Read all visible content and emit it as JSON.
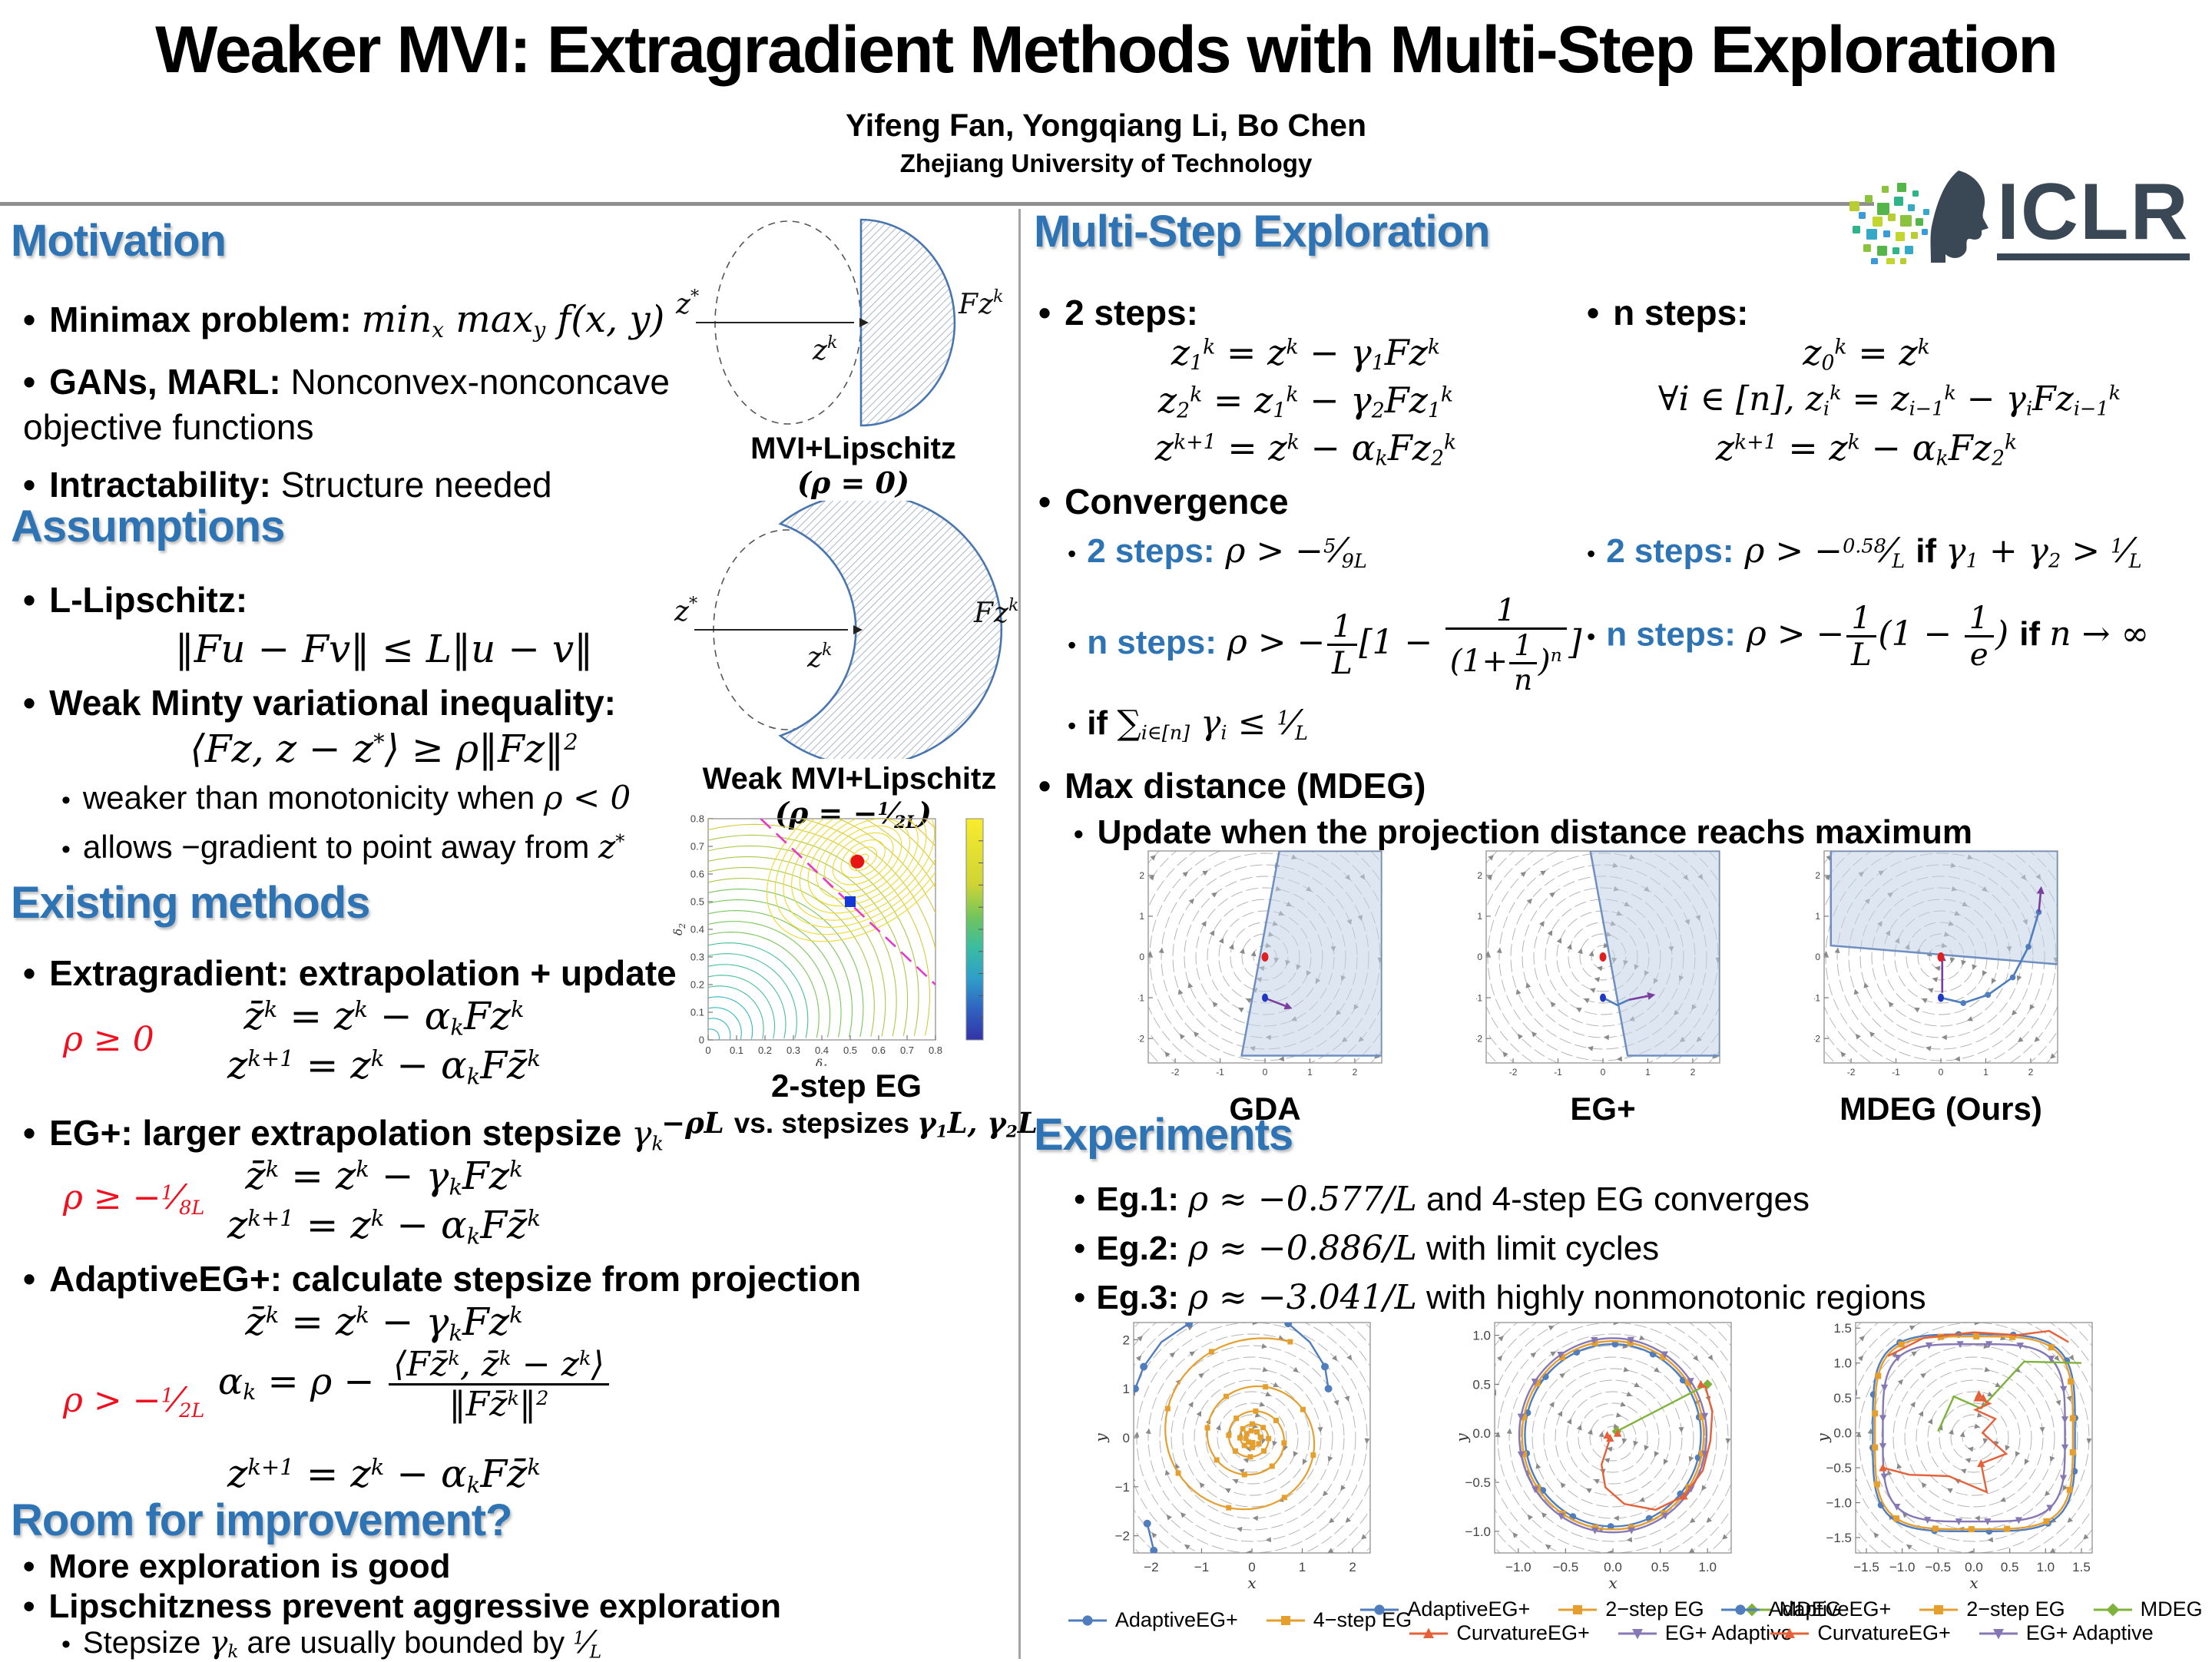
{
  "header": {
    "title": "Weaker MVI: Extragradient Methods with Multi-Step Exploration",
    "authors": "Yifeng Fan, Yongqiang Li, Bo Chen",
    "affiliation": "Zhejiang University of Technology",
    "logo_text": "ICLR"
  },
  "colors": {
    "accent": "#2E74B5",
    "red_constraint": "#F00F1E",
    "field_line": "#9a9a9a",
    "region_fill": "#c3d2e6",
    "region_stroke": "#6f8fc0",
    "equilibrium_red": "#e02020",
    "start_blue": "#2038c8",
    "trajectory_purple": "#7a3f9e",
    "magenta_dashed": "#e838c8",
    "series": {
      "blue": "#4f7dbd",
      "orange": "#e49f2f",
      "green": "#7fb23a",
      "red": "#e5613a",
      "purple": "#8677b5"
    },
    "contour_palette": [
      "#35b7c4",
      "#49c194",
      "#79c65c",
      "#abc948",
      "#d2cb3b",
      "#e9bc38",
      "#eda53c"
    ],
    "logo_dark": "#3a4754",
    "logo_palette": [
      "#b9cc33",
      "#8bc43c",
      "#55b54a",
      "#2fb489",
      "#35a9c6",
      "#3b9bd6",
      "#c3d62f"
    ]
  },
  "left": {
    "motivation": {
      "heading": "Motivation",
      "b1_label": "Minimax problem: ",
      "b1_math": "min_{x} max_{y} f(x, y)",
      "b2_label": "GANs, MARL: ",
      "b2_text": "Nonconvex-nonconcave objective functions",
      "b3_label": "Intractability: ",
      "b3_text": "Structure needed"
    },
    "assumptions": {
      "heading": "Assumptions",
      "lip_label": "L-Lipschitz:",
      "lip_formula": "‖Fu − Fv‖ ≤ L‖u − v‖",
      "wmvi_label": "Weak Minty variational inequality:",
      "wmvi_formula": "⟨Fz, z − z^{*}⟩ ≥ ρ‖Fz‖^{2}",
      "sub1_text": "weaker than monotonicity when ",
      "sub1_math": "ρ < 0",
      "sub2_text": "allows −gradient to point away from ",
      "sub2_math": "z^{*}"
    },
    "existing": {
      "heading": "Existing methods",
      "methods": [
        {
          "title": "Extragradient: extrapolation + update",
          "title_math": "",
          "constraint": "ρ ≥ 0",
          "f1": "z̄^{k} = z^{k} − α_{k}Fz^{k}",
          "f2": "z^{k+1} = z^{k} − α_{k}Fz̄^{k}"
        },
        {
          "title": "EG+: larger extrapolation stepsize ",
          "title_math": "γ_{k}",
          "constraint": "ρ ≥ −\\sfrac{1}{8L}",
          "f1": "z̄^{k} = z^{k} − γ_{k}Fz^{k}",
          "f2": "z^{k+1} = z^{k} − α_{k}Fz̄^{k}"
        },
        {
          "title": "AdaptiveEG+: calculate stepsize from projection",
          "title_math": "",
          "constraint": "ρ > −\\sfrac{1}{2L}",
          "f1": "z̄^{k} = z^{k} − γ_{k}Fz^{k}",
          "f_mid": "α_{k} = ρ − \\frac{⟨Fz̄^{k}, z̄^{k} − z^{k}⟩}{‖Fz̄^{k}‖^{2}}",
          "f2": "z^{k+1} = z^{k} − α_{k}Fz̄^{k}"
        }
      ]
    },
    "room": {
      "heading": "Room for improvement?",
      "b1": "More exploration is good",
      "b2": "Lipschitzness prevent aggressive exploration",
      "sub_text1": "Stepsize ",
      "sub_math1": "γ_{k}",
      "sub_text2": " are usually bounded by ",
      "sub_math2": "\\sfrac{1}{L}"
    }
  },
  "middle": {
    "diagram1": {
      "caption": "MVI+Lipschitz",
      "subcaption": "(ρ = 0)",
      "zstar": "z^{*}",
      "zk": "z^{k}",
      "fzk": "Fz^{k}"
    },
    "diagram2": {
      "caption": "Weak MVI+Lipschitz",
      "subcaption": "(ρ = −\\sfrac{1}{2L})",
      "zstar": "z^{*}",
      "zk": "z^{k}",
      "fzk": "Fz^{k}"
    }
  },
  "right": {
    "heading": "Multi-Step Exploration",
    "two_steps": {
      "label": "2 steps:",
      "f1": "z_{1}^{k} = z^{k} − γ_{1}Fz^{k}",
      "f2": "z_{2}^{k} = z_{1}^{k} − γ_{2}Fz_{1}^{k}",
      "f3": "z^{k+1} = z^{k} − α_{k}Fz_{2}^{k}"
    },
    "n_steps": {
      "label": "n steps:",
      "f1": "z_{0}^{k} = z^{k}",
      "f2": "∀i ∈ [n], z_{i}^{k} = z_{i−1}^{k} − γ_{i}Fz_{i−1}^{k}",
      "f3": "z^{k+1} = z^{k} − α_{k}Fz_{2}^{k}"
    },
    "convergence": {
      "label": "Convergence",
      "items_left": [
        {
          "name": "2 steps:",
          "math": " ρ > −\\sfrac{5}{9L}"
        },
        {
          "name": "n steps:",
          "math": " ρ > −\\frac{1}{L}[1 − \\frac{1}{(1+\\frac{1}{n})^{n}}]"
        }
      ],
      "items_right": [
        {
          "name": "2 steps:",
          "math": " ρ > −\\sfrac{0.58}{L} \\b{ if } γ_{1} + γ_{2} > \\sfrac{1}{L}"
        },
        {
          "name": "n steps:",
          "math": " ρ > −\\frac{1}{L}(1 − \\frac{1}{e}) \\b{ if } n → ∞"
        }
      ],
      "if_math": "\\b{if } ∑_{i∈[n]} γ_{i} ≤ \\sfrac{1}{L}"
    },
    "mdeg_label": "Max distance (MDEG)",
    "mdeg_sub": "Update when the projection distance reachs maximum",
    "experiments": {
      "heading": "Experiments",
      "items": [
        {
          "label": "Eg.1: ",
          "math": "ρ ≈ −0.577/L",
          "text": " and 4-step EG converges"
        },
        {
          "label": "Eg.2: ",
          "math": "ρ ≈ −0.886/L",
          "text": " with limit cycles"
        },
        {
          "label": "Eg.3: ",
          "math": "ρ ≈ −3.041/L",
          "text": " with highly nonmonotonic regions"
        }
      ]
    }
  },
  "chart_data": [
    {
      "id": "contour",
      "type": "contour",
      "caption": "2-step EG",
      "subcaption_formula": "−ρL \\b{ vs. stepsizes } γ_{1}L, γ_{2}L",
      "xlabel": "δ_{1}",
      "ylabel": "δ_{2}",
      "xlim": [
        0,
        0.8
      ],
      "ylim": [
        0,
        0.8
      ],
      "tick_vals": [
        0,
        0.1,
        0.2,
        0.3,
        0.4,
        0.5,
        0.6,
        0.7,
        0.8
      ],
      "tick_labels": [
        "0",
        "0.1",
        "0.2",
        "0.3",
        "0.4",
        "0.5",
        "0.6",
        "0.7",
        "0.8"
      ],
      "red_point": [
        0.525,
        0.645
      ],
      "blue_square": [
        0.5,
        0.5
      ],
      "dashed_line": [
        [
          0.185,
          0.8
        ],
        [
          0.8,
          0.2
        ]
      ],
      "focus": [
        0.545,
        0.655
      ],
      "grid": false,
      "legend": "colorbar-right"
    },
    {
      "id": "gda",
      "type": "field",
      "caption": "GDA",
      "xlim": [
        -2.6,
        2.6
      ],
      "ylim": [
        -2.6,
        2.6
      ],
      "tick_vals": [
        -2,
        -1,
        0,
        1,
        2
      ],
      "tick_labels": [
        "-2",
        "-1",
        "0",
        "1",
        "2"
      ],
      "region": [
        [
          0.32,
          2.6
        ],
        [
          2.6,
          2.6
        ],
        [
          2.6,
          -2.42
        ],
        [
          -0.52,
          -2.42
        ]
      ],
      "equilibrium": [
        0,
        0
      ],
      "start": [
        0,
        -1
      ],
      "purple_arrows": [
        [
          [
            0.05,
            -1.03
          ],
          [
            0.45,
            -1.2
          ]
        ]
      ]
    },
    {
      "id": "egp",
      "type": "field",
      "caption": "EG+",
      "xlim": [
        -2.6,
        2.6
      ],
      "ylim": [
        -2.6,
        2.6
      ],
      "tick_vals": [
        -2,
        -1,
        0,
        1,
        2
      ],
      "tick_labels": [
        "-2",
        "-1",
        "0",
        "1",
        "2"
      ],
      "region": [
        [
          -0.28,
          2.6
        ],
        [
          2.6,
          2.6
        ],
        [
          2.6,
          -2.42
        ],
        [
          0.55,
          -2.42
        ]
      ],
      "equilibrium": [
        0,
        0
      ],
      "start": [
        0,
        -1
      ],
      "blue_path": [
        [
          0,
          -1
        ],
        [
          0.32,
          -1.18
        ],
        [
          0.58,
          -1.05
        ]
      ],
      "purple_arrows": [
        [
          [
            0.58,
            -1.05
          ],
          [
            1.0,
            -0.96
          ]
        ]
      ]
    },
    {
      "id": "mdeg",
      "type": "field",
      "caption": "MDEG (Ours)",
      "xlim": [
        -2.6,
        2.6
      ],
      "ylim": [
        -2.6,
        2.6
      ],
      "tick_vals": [
        -2,
        -1,
        0,
        1,
        2
      ],
      "tick_labels": [
        "-2",
        "-1",
        "0",
        "1",
        "2"
      ],
      "region": [
        [
          -2.45,
          2.6
        ],
        [
          2.6,
          2.6
        ],
        [
          2.6,
          -0.18
        ],
        [
          -2.45,
          0.28
        ]
      ],
      "equilibrium": [
        0,
        0
      ],
      "start": [
        0,
        -1
      ],
      "blue_path": [
        [
          0,
          -1
        ],
        [
          0.5,
          -1.13
        ],
        [
          1.05,
          -0.93
        ],
        [
          1.6,
          -0.5
        ],
        [
          1.95,
          0.25
        ],
        [
          2.18,
          1.1
        ]
      ],
      "blue_path_markers": true,
      "purple_arrows": [
        [
          [
            0.03,
            -0.88
          ],
          [
            0.03,
            -0.1
          ]
        ],
        [
          [
            2.18,
            1.1
          ],
          [
            2.22,
            1.55
          ]
        ]
      ]
    },
    {
      "id": "exp1",
      "type": "field",
      "xlabel": "x",
      "ylabel": "y",
      "frame": true,
      "xlim": [
        -2.35,
        2.35
      ],
      "ylim": [
        -2.35,
        2.35
      ],
      "tick_vals": [
        -2,
        -1,
        0,
        1,
        2
      ],
      "tick_labels": [
        "−2",
        "−1",
        "0",
        "1",
        "2"
      ],
      "spiral_in": {
        "color": "orange",
        "r0": 2.1,
        "decay": 0.105,
        "turns": 4.6,
        "marker": "square"
      },
      "paths": [
        {
          "color": "blue",
          "marker": "circle",
          "pts": [
            [
              -1.25,
              2.33
            ],
            [
              -1.8,
              1.95
            ],
            [
              -2.15,
              1.45
            ],
            [
              -2.32,
              1.0
            ]
          ]
        },
        {
          "color": "blue",
          "marker": "circle",
          "pts": [
            [
              0.72,
              2.33
            ],
            [
              1.15,
              1.95
            ],
            [
              1.45,
              1.45
            ],
            [
              1.52,
              1.0
            ]
          ]
        },
        {
          "color": "blue",
          "marker": "circle",
          "pts": [
            [
              -2.08,
              -1.75
            ],
            [
              -1.95,
              -2.3
            ]
          ]
        }
      ],
      "legend_rows": [
        [
          {
            "label": "AdaptiveEG+",
            "color": "blue",
            "marker": "circle"
          },
          {
            "label": "4−step EG",
            "color": "orange",
            "marker": "square"
          }
        ]
      ]
    },
    {
      "id": "exp2",
      "type": "field",
      "xlabel": "x",
      "ylabel": "y",
      "frame": true,
      "xlim": [
        -1.25,
        1.25
      ],
      "ylim": [
        -1.22,
        1.13
      ],
      "tick_vals": [
        -1.0,
        -0.5,
        0.0,
        0.5,
        1.0
      ],
      "tick_labels": [
        "−1.0",
        "−0.5",
        "0.0",
        "0.5",
        "1.0"
      ],
      "rings": [
        {
          "r": 0.93,
          "color": "blue",
          "marker": "circle",
          "n": 14
        },
        {
          "r": 0.96,
          "color": "orange",
          "marker": "square",
          "n": 16
        },
        {
          "r": 0.99,
          "color": "purple",
          "marker": "tridown",
          "n": 16
        }
      ],
      "ring_center": [
        0,
        -0.02
      ],
      "paths": [
        {
          "color": "green",
          "pts": [
            [
              0.04,
              0.02
            ],
            [
              1.0,
              0.5
            ]
          ],
          "marker": "diamond",
          "marker_every": 1
        },
        {
          "color": "red",
          "marker": "triup",
          "marker_every": 5,
          "pts": [
            [
              -0.03,
              -0.05
            ],
            [
              -0.12,
              -0.32
            ],
            [
              -0.08,
              -0.55
            ],
            [
              0.12,
              -0.72
            ],
            [
              0.45,
              -0.78
            ],
            [
              0.75,
              -0.64
            ],
            [
              0.95,
              -0.38
            ],
            [
              1.03,
              -0.08
            ],
            [
              1.05,
              0.22
            ],
            [
              0.98,
              0.47
            ],
            [
              0.93,
              0.5
            ]
          ]
        }
      ],
      "red_cluster": [
        [
          -0.06,
          -0.02
        ],
        [
          0.05,
          0.0
        ]
      ],
      "legend_rows": [
        [
          {
            "label": "AdaptiveEG+",
            "color": "blue",
            "marker": "circle"
          },
          {
            "label": "2−step EG",
            "color": "orange",
            "marker": "square"
          },
          {
            "label": "MDEG",
            "color": "green",
            "marker": "diamond"
          }
        ],
        [
          {
            "label": "CurvatureEG+",
            "color": "red",
            "marker": "triup"
          },
          {
            "label": "EG+ Adaptive",
            "color": "purple",
            "marker": "tridown"
          }
        ]
      ]
    },
    {
      "id": "exp3",
      "type": "field",
      "xlabel": "x",
      "ylabel": "y",
      "frame": true,
      "xlim": [
        -1.65,
        1.65
      ],
      "ylim": [
        -1.72,
        1.58
      ],
      "tick_vals": [
        -1.5,
        -1.0,
        -0.5,
        0.0,
        0.5,
        1.0,
        1.5
      ],
      "tick_labels": [
        "−1.5",
        "−1.0",
        "−0.5",
        "0.0",
        "0.5",
        "1.0",
        "1.5"
      ],
      "superellipses": [
        {
          "a": 1.41,
          "color": "blue",
          "marker": "circle",
          "n": 12
        },
        {
          "a": 1.38,
          "color": "orange",
          "marker": "square",
          "n": 18
        },
        {
          "a": 1.27,
          "color": "purple",
          "marker": "tridown",
          "n": 20
        }
      ],
      "paths": [
        {
          "color": "green",
          "pts": [
            [
              -0.5,
              0.02
            ],
            [
              -0.28,
              0.52
            ],
            [
              0.1,
              0.35
            ],
            [
              0.7,
              1.02
            ],
            [
              1.5,
              1.0
            ]
          ]
        },
        {
          "color": "red",
          "marker": "triup",
          "marker_every": 6,
          "pts": [
            [
              0.05,
              0.5
            ],
            [
              0.22,
              0.42
            ],
            [
              0.02,
              0.33
            ],
            [
              0.3,
              0.2
            ],
            [
              0.12,
              0.0
            ],
            [
              0.45,
              -0.3
            ],
            [
              0.1,
              -0.44
            ],
            [
              0.18,
              -0.85
            ],
            [
              -0.35,
              -0.62
            ],
            [
              -0.9,
              -0.6
            ],
            [
              -1.27,
              -0.5
            ]
          ]
        },
        {
          "color": "red",
          "pts": [
            [
              -1.2,
              1.1
            ],
            [
              -0.7,
              1.36
            ],
            [
              0.0,
              1.44
            ],
            [
              0.6,
              1.4
            ],
            [
              1.05,
              1.46
            ],
            [
              1.32,
              1.3
            ]
          ]
        }
      ],
      "red_cluster": [
        [
          0.07,
          0.55
        ],
        [
          0.13,
          0.5
        ]
      ],
      "legend_rows": [
        [
          {
            "label": "AdaptiveEG+",
            "color": "blue",
            "marker": "circle"
          },
          {
            "label": "2−step EG",
            "color": "orange",
            "marker": "square"
          },
          {
            "label": "MDEG",
            "color": "green",
            "marker": "diamond"
          }
        ],
        [
          {
            "label": "CurvatureEG+",
            "color": "red",
            "marker": "triup"
          },
          {
            "label": "EG+ Adaptive",
            "color": "purple",
            "marker": "tridown"
          }
        ]
      ]
    }
  ]
}
